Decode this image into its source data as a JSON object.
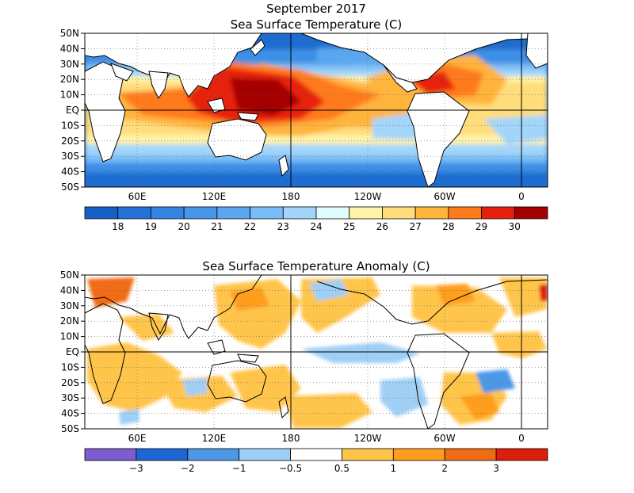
{
  "figure": {
    "title_line1": "September 2017",
    "title_line2": "Sea Surface Temperature (C)",
    "title_anomaly": "Sea Surface Temperature Anomaly (C)"
  },
  "axes": {
    "lat_labels": [
      "50N",
      "40N",
      "30N",
      "20N",
      "10N",
      "EQ",
      "10S",
      "20S",
      "30S",
      "40S",
      "50S"
    ],
    "lon_labels": [
      "60E",
      "120E",
      "180",
      "120W",
      "60W",
      "0"
    ]
  },
  "sst_colorbar": {
    "labels": [
      "18",
      "19",
      "20",
      "21",
      "22",
      "23",
      "24",
      "25",
      "26",
      "27",
      "28",
      "29",
      "30"
    ],
    "colors": [
      "#1560c8",
      "#2472d7",
      "#3385e3",
      "#4696ea",
      "#5aa6f0",
      "#78bdf7",
      "#a3d5fa",
      "#e1fcfc",
      "#fff3a9",
      "#ffdd7a",
      "#ffb43c",
      "#ff7a1a",
      "#e6200c",
      "#a50000"
    ]
  },
  "anomaly_colorbar": {
    "labels": [
      "−3",
      "−2",
      "−1",
      "−0.5",
      "0.5",
      "1",
      "2",
      "3"
    ],
    "colors": [
      "#7d5cd0",
      "#1e64d2",
      "#4c98e6",
      "#9fcff5",
      "#ffffff",
      "#ffc54b",
      "#ff9e1e",
      "#f06c14",
      "#dc1e0a"
    ]
  }
}
